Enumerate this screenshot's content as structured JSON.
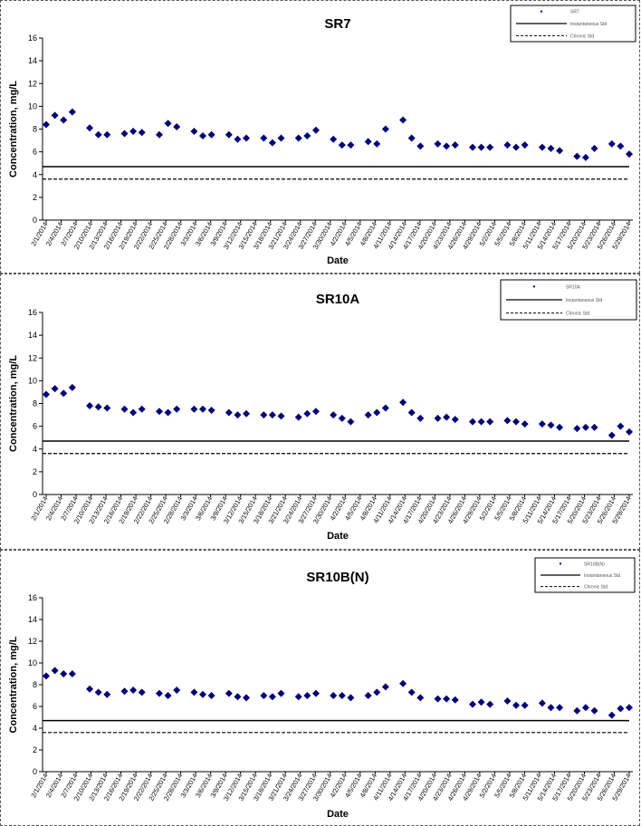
{
  "chart_data": [
    {
      "type": "scatter",
      "title": "SR7",
      "xlabel": "Date",
      "ylabel": "Concentration, mg/L",
      "ylim": [
        0,
        16
      ],
      "yticks": [
        0,
        2,
        4,
        6,
        8,
        10,
        12,
        14,
        16
      ],
      "x_tick_labels": [
        "2/1/2014",
        "2/4/2014",
        "2/7/2014",
        "2/10/2014",
        "2/13/2014",
        "2/16/2014",
        "2/19/2014",
        "2/22/2014",
        "2/25/2014",
        "2/28/2014",
        "3/3/2014",
        "3/6/2014",
        "3/9/2014",
        "3/12/2014",
        "3/15/2014",
        "3/18/2014",
        "3/21/2014",
        "3/24/2014",
        "3/27/2014",
        "3/30/2014",
        "4/2/2014",
        "4/5/2014",
        "4/8/2014",
        "4/11/2014",
        "4/14/2014",
        "4/17/2014",
        "4/20/2014",
        "4/23/2014",
        "4/26/2014",
        "4/29/2014",
        "5/2/2014",
        "5/5/2014",
        "5/8/2014",
        "5/11/2014",
        "5/14/2014",
        "5/17/2014",
        "5/20/2014",
        "5/23/2014",
        "5/26/2014",
        "5/29/2014"
      ],
      "legend_position": "top-right",
      "legend_entries": [
        "SR7",
        "Instantaneous Std",
        "Chronic Std"
      ],
      "series": [
        {
          "values": [
            [
              0,
              8.4
            ],
            [
              1,
              9.2
            ],
            [
              2,
              8.8
            ],
            [
              3,
              9.5
            ],
            [
              5,
              8.1
            ],
            [
              6,
              7.5
            ],
            [
              7,
              7.5
            ],
            [
              9,
              7.6
            ],
            [
              10,
              7.8
            ],
            [
              11,
              7.7
            ],
            [
              13,
              7.5
            ],
            [
              14,
              8.5
            ],
            [
              15,
              8.2
            ],
            [
              17,
              7.8
            ],
            [
              18,
              7.4
            ],
            [
              19,
              7.5
            ],
            [
              21,
              7.5
            ],
            [
              22,
              7.1
            ],
            [
              23,
              7.2
            ],
            [
              25,
              7.2
            ],
            [
              26,
              6.8
            ],
            [
              27,
              7.2
            ],
            [
              29,
              7.2
            ],
            [
              30,
              7.4
            ],
            [
              31,
              7.9
            ],
            [
              33,
              7.1
            ],
            [
              34,
              6.6
            ],
            [
              35,
              6.6
            ],
            [
              37,
              6.9
            ],
            [
              38,
              6.7
            ],
            [
              39,
              8.0
            ],
            [
              41,
              8.8
            ],
            [
              42,
              7.2
            ],
            [
              43,
              6.5
            ],
            [
              45,
              6.7
            ],
            [
              46,
              6.5
            ],
            [
              47,
              6.6
            ],
            [
              49,
              6.4
            ],
            [
              50,
              6.4
            ],
            [
              51,
              6.4
            ],
            [
              53,
              6.6
            ],
            [
              54,
              6.4
            ],
            [
              55,
              6.6
            ],
            [
              57,
              6.4
            ],
            [
              58,
              6.3
            ],
            [
              59,
              6.1
            ],
            [
              61,
              5.6
            ],
            [
              62,
              5.5
            ],
            [
              63,
              6.3
            ],
            [
              65,
              6.7
            ],
            [
              66,
              6.5
            ],
            [
              67,
              5.8
            ]
          ]
        },
        {
          "value": 4.7
        },
        {
          "value": 3.6
        }
      ]
    },
    {
      "type": "scatter",
      "title": "SR10A",
      "xlabel": "Date",
      "ylabel": "Concentration, mg/L",
      "ylim": [
        0,
        16
      ],
      "yticks": [
        0,
        2,
        4,
        6,
        8,
        10,
        12,
        14,
        16
      ],
      "x_tick_labels": [
        "2/1/2014",
        "2/4/2014",
        "2/7/2014",
        "2/10/2014",
        "2/13/2014",
        "2/16/2014",
        "2/19/2014",
        "2/22/2014",
        "2/25/2014",
        "2/28/2014",
        "3/3/2014",
        "3/6/2014",
        "3/9/2014",
        "3/12/2014",
        "3/15/2014",
        "3/18/2014",
        "3/21/2014",
        "3/24/2014",
        "3/27/2014",
        "3/30/2014",
        "4/2/2014",
        "4/5/2014",
        "4/8/2014",
        "4/11/2014",
        "4/14/2014",
        "4/17/2014",
        "4/20/2014",
        "4/23/2014",
        "4/26/2014",
        "4/29/2014",
        "5/2/2014",
        "5/5/2014",
        "5/8/2014",
        "5/11/2014",
        "5/14/2014",
        "5/17/2014",
        "5/20/2014",
        "5/23/2014",
        "5/26/2014",
        "5/29/2014"
      ],
      "legend_position": "top-right",
      "legend_entries": [
        "SR10A",
        "Instantaneous Std",
        "Chronic Std"
      ],
      "series": [
        {
          "values": [
            [
              0,
              8.8
            ],
            [
              1,
              9.3
            ],
            [
              2,
              8.9
            ],
            [
              3,
              9.4
            ],
            [
              5,
              7.8
            ],
            [
              6,
              7.7
            ],
            [
              7,
              7.6
            ],
            [
              9,
              7.5
            ],
            [
              10,
              7.2
            ],
            [
              11,
              7.5
            ],
            [
              13,
              7.3
            ],
            [
              14,
              7.2
            ],
            [
              15,
              7.5
            ],
            [
              17,
              7.5
            ],
            [
              18,
              7.5
            ],
            [
              19,
              7.4
            ],
            [
              21,
              7.2
            ],
            [
              22,
              7.0
            ],
            [
              23,
              7.1
            ],
            [
              25,
              7.0
            ],
            [
              26,
              7.0
            ],
            [
              27,
              6.9
            ],
            [
              29,
              6.8
            ],
            [
              30,
              7.1
            ],
            [
              31,
              7.3
            ],
            [
              33,
              7.0
            ],
            [
              34,
              6.7
            ],
            [
              35,
              6.4
            ],
            [
              37,
              7.0
            ],
            [
              38,
              7.2
            ],
            [
              39,
              7.6
            ],
            [
              41,
              8.1
            ],
            [
              42,
              7.2
            ],
            [
              43,
              6.7
            ],
            [
              45,
              6.7
            ],
            [
              46,
              6.8
            ],
            [
              47,
              6.6
            ],
            [
              49,
              6.4
            ],
            [
              50,
              6.4
            ],
            [
              51,
              6.4
            ],
            [
              53,
              6.5
            ],
            [
              54,
              6.4
            ],
            [
              55,
              6.2
            ],
            [
              57,
              6.2
            ],
            [
              58,
              6.1
            ],
            [
              59,
              5.9
            ],
            [
              61,
              5.8
            ],
            [
              62,
              5.9
            ],
            [
              63,
              5.9
            ],
            [
              65,
              5.2
            ],
            [
              66,
              6.0
            ],
            [
              67,
              5.5
            ]
          ]
        },
        {
          "value": 4.7
        },
        {
          "value": 3.6
        }
      ]
    },
    {
      "type": "scatter",
      "title": "SR10B(N)",
      "xlabel": "Date",
      "ylabel": "Concentration, mg/L",
      "ylim": [
        0,
        16
      ],
      "yticks": [
        0,
        2,
        4,
        6,
        8,
        10,
        12,
        14,
        16
      ],
      "x_tick_labels": [
        "2/1/2014",
        "2/4/2014",
        "2/7/2014",
        "2/10/2014",
        "2/13/2014",
        "2/16/2014",
        "2/19/2014",
        "2/22/2014",
        "2/25/2014",
        "2/28/2014",
        "3/3/2014",
        "3/6/2014",
        "3/9/2014",
        "3/12/2014",
        "3/15/2014",
        "3/18/2014",
        "3/21/2014",
        "3/24/2014",
        "3/27/2014",
        "3/30/2014",
        "4/2/2014",
        "4/5/2014",
        "4/8/2014",
        "4/11/2014",
        "4/14/2014",
        "4/17/2014",
        "4/20/2014",
        "4/23/2014",
        "4/26/2014",
        "4/29/2014",
        "5/2/2014",
        "5/5/2014",
        "5/8/2014",
        "5/11/2014",
        "5/14/2014",
        "5/17/2014",
        "5/20/2014",
        "5/23/2014",
        "5/26/2014",
        "5/29/2014"
      ],
      "legend_position": "top-right",
      "legend_entries": [
        "SR10B(N)",
        "Instantaneous Std",
        "Chronic Std"
      ],
      "series": [
        {
          "values": [
            [
              0,
              8.8
            ],
            [
              1,
              9.3
            ],
            [
              2,
              9.0
            ],
            [
              3,
              9.0
            ],
            [
              5,
              7.6
            ],
            [
              6,
              7.3
            ],
            [
              7,
              7.1
            ],
            [
              9,
              7.4
            ],
            [
              10,
              7.5
            ],
            [
              11,
              7.3
            ],
            [
              13,
              7.2
            ],
            [
              14,
              7.0
            ],
            [
              15,
              7.5
            ],
            [
              17,
              7.3
            ],
            [
              18,
              7.1
            ],
            [
              19,
              7.0
            ],
            [
              21,
              7.2
            ],
            [
              22,
              6.9
            ],
            [
              23,
              6.8
            ],
            [
              25,
              7.0
            ],
            [
              26,
              6.9
            ],
            [
              27,
              7.2
            ],
            [
              29,
              6.9
            ],
            [
              30,
              7.0
            ],
            [
              31,
              7.2
            ],
            [
              33,
              7.0
            ],
            [
              34,
              7.0
            ],
            [
              35,
              6.8
            ],
            [
              37,
              7.0
            ],
            [
              38,
              7.3
            ],
            [
              39,
              7.8
            ],
            [
              41,
              8.1
            ],
            [
              42,
              7.3
            ],
            [
              43,
              6.8
            ],
            [
              45,
              6.7
            ],
            [
              46,
              6.7
            ],
            [
              47,
              6.6
            ],
            [
              49,
              6.2
            ],
            [
              50,
              6.4
            ],
            [
              51,
              6.2
            ],
            [
              53,
              6.5
            ],
            [
              54,
              6.1
            ],
            [
              55,
              6.1
            ],
            [
              57,
              6.3
            ],
            [
              58,
              5.9
            ],
            [
              59,
              5.9
            ],
            [
              61,
              5.6
            ],
            [
              62,
              5.9
            ],
            [
              63,
              5.6
            ],
            [
              65,
              5.2
            ],
            [
              66,
              5.8
            ],
            [
              67,
              5.9
            ]
          ]
        },
        {
          "value": 4.7
        },
        {
          "value": 3.6
        }
      ]
    }
  ],
  "colors": {
    "marker": "#00007f",
    "line": "#000000"
  }
}
